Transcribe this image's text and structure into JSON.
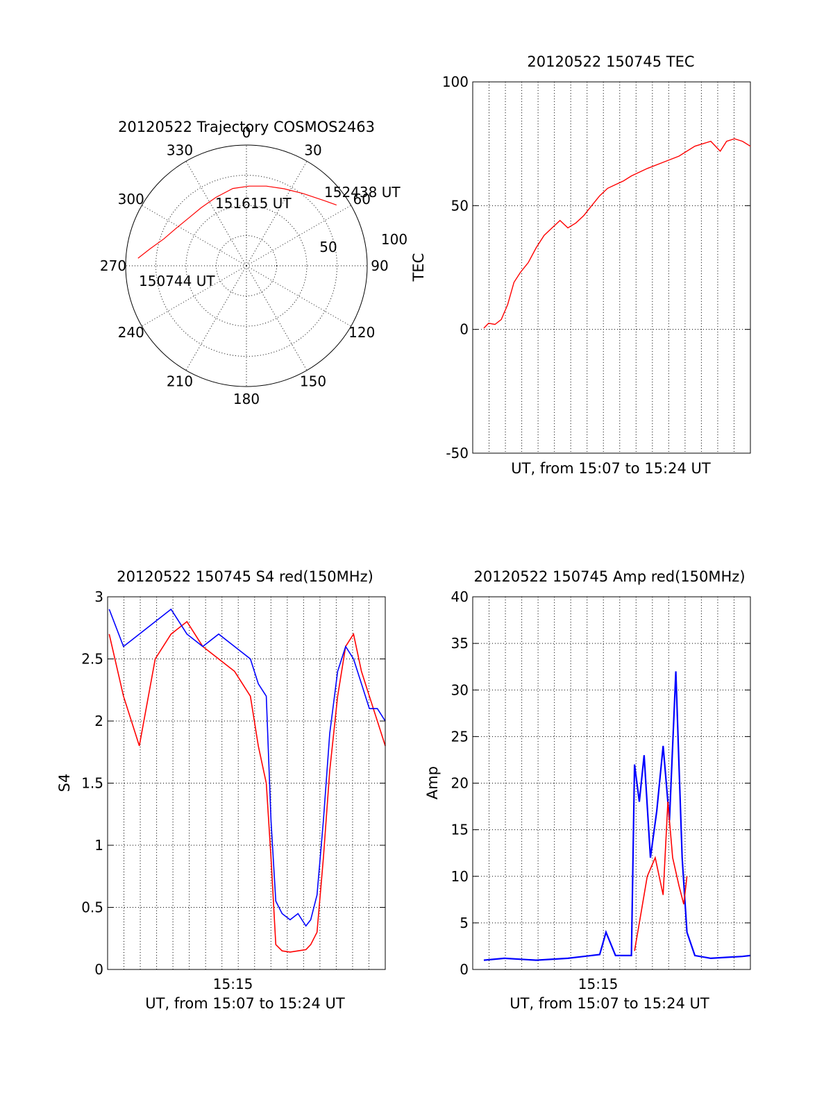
{
  "chart_data": [
    {
      "id": "trajectory",
      "type": "polar",
      "title": "20120522 Trajectory COSMOS2463",
      "azimuth_labels": [
        "0",
        "30",
        "60",
        "90",
        "120",
        "150",
        "180",
        "210",
        "240",
        "270",
        "300",
        "330"
      ],
      "radial_tick_labels": [
        "50",
        "100"
      ],
      "radius_max": 100,
      "colors": {
        "track": "#ff0000"
      },
      "track": {
        "azimuth_deg": [
          274,
          280,
          288,
          298,
          310,
          322,
          336,
          350,
          2,
          14,
          26,
          38,
          50,
          56
        ],
        "radius": [
          90,
          81,
          72,
          66,
          62,
          61,
          62,
          65,
          66,
          68,
          71,
          76,
          84,
          90
        ]
      },
      "annotations": [
        {
          "text": "150744 UT",
          "azimuth_deg": 274,
          "radius": 90
        },
        {
          "text": "151615 UT",
          "azimuth_deg": 0,
          "radius": 45
        },
        {
          "text": "152438 UT",
          "azimuth_deg": 56,
          "radius": 90
        }
      ]
    },
    {
      "id": "tec",
      "type": "line",
      "title": "20120522 150745 TEC",
      "xlabel": "UT, from 15:07 to 15:24 UT",
      "ylabel": "TEC",
      "xlim": [
        0,
        17.5
      ],
      "ylim": [
        -50,
        100
      ],
      "yticks": [
        "100",
        "50",
        "0",
        "-50"
      ],
      "ytick_values": [
        100,
        50,
        0,
        -50
      ],
      "grid": true,
      "colors": {
        "series": "#ff0000"
      },
      "series": [
        {
          "x": [
            0.7,
            1.0,
            1.4,
            1.8,
            2.2,
            2.6,
            3.0,
            3.5,
            4.0,
            4.5,
            5.0,
            5.5,
            6.0,
            6.5,
            7.0,
            7.5,
            8.0,
            8.5,
            9.0,
            9.5,
            10.0,
            11.0,
            12.0,
            13.0,
            14.0,
            15.0,
            15.6,
            16.0,
            16.5,
            17.0,
            17.5
          ],
          "y": [
            0.5,
            2.5,
            2.0,
            4.0,
            10.0,
            19.0,
            23.0,
            27.0,
            33.0,
            38.0,
            41.0,
            44.0,
            41.0,
            43.0,
            46.0,
            50.0,
            54.0,
            57.0,
            58.5,
            60.0,
            62.0,
            65.0,
            67.5,
            70.0,
            74.0,
            76.0,
            72.0,
            76.0,
            77.0,
            76.0,
            74.0
          ]
        }
      ]
    },
    {
      "id": "s4",
      "type": "line",
      "title": "20120522 150745 S4 red(150MHz)",
      "xlabel": "UT, from 15:07 to 15:24 UT",
      "ylabel": "S4",
      "xlim": [
        0,
        17.5
      ],
      "ylim": [
        0,
        3
      ],
      "yticks": [
        "3",
        "2.5",
        "2",
        "1.5",
        "1",
        "0.5",
        "0"
      ],
      "ytick_values": [
        3,
        2.5,
        2,
        1.5,
        1,
        0.5,
        0
      ],
      "xticks": [
        "15:15"
      ],
      "xtick_values": [
        7.9
      ],
      "grid": true,
      "colors": {
        "red": "#ff0000",
        "blue": "#0000ff"
      },
      "series": [
        {
          "color": "red",
          "x": [
            0.1,
            1.0,
            2.0,
            3.0,
            4.0,
            5.0,
            6.0,
            7.0,
            8.0,
            9.0,
            9.5,
            10.0,
            10.3,
            10.6,
            11.0,
            11.5,
            12.0,
            12.5,
            12.8,
            13.2,
            13.6,
            14.0,
            14.5,
            15.0,
            15.5,
            16.0,
            16.5,
            17.0,
            17.5
          ],
          "y": [
            2.7,
            2.2,
            1.8,
            2.5,
            2.7,
            2.8,
            2.6,
            2.5,
            2.4,
            2.2,
            1.8,
            1.5,
            0.9,
            0.2,
            0.15,
            0.14,
            0.15,
            0.16,
            0.2,
            0.3,
            0.9,
            1.6,
            2.2,
            2.6,
            2.7,
            2.4,
            2.2,
            2.0,
            1.8
          ]
        },
        {
          "color": "blue",
          "x": [
            0.1,
            1.0,
            2.0,
            3.0,
            4.0,
            5.0,
            6.0,
            7.0,
            8.0,
            9.0,
            9.5,
            10.0,
            10.3,
            10.6,
            11.0,
            11.5,
            12.0,
            12.5,
            12.8,
            13.2,
            13.6,
            14.0,
            14.5,
            15.0,
            15.5,
            16.0,
            16.5,
            17.0,
            17.5
          ],
          "y": [
            2.9,
            2.6,
            2.7,
            2.8,
            2.9,
            2.7,
            2.6,
            2.7,
            2.6,
            2.5,
            2.3,
            2.2,
            1.2,
            0.55,
            0.45,
            0.4,
            0.45,
            0.35,
            0.4,
            0.6,
            1.2,
            1.9,
            2.4,
            2.6,
            2.5,
            2.3,
            2.1,
            2.1,
            2.0
          ]
        }
      ]
    },
    {
      "id": "amp",
      "type": "line",
      "title": "20120522 150745 Amp red(150MHz)",
      "xlabel": "UT, from 15:07 to 15:24 UT",
      "ylabel": "Amp",
      "xlim": [
        0,
        17.5
      ],
      "ylim": [
        0,
        40
      ],
      "yticks": [
        "40",
        "35",
        "30",
        "25",
        "20",
        "15",
        "10",
        "5",
        "0"
      ],
      "ytick_values": [
        40,
        35,
        30,
        25,
        20,
        15,
        10,
        5,
        0
      ],
      "xticks": [
        "15:15"
      ],
      "xtick_values": [
        7.9
      ],
      "grid": true,
      "colors": {
        "red": "#ff0000",
        "blue": "#0000ff"
      },
      "series": [
        {
          "color": "red",
          "x": [
            10.2,
            10.6,
            11.0,
            11.5,
            12.0,
            12.3,
            12.6,
            13.0,
            13.3,
            13.5
          ],
          "y": [
            2.0,
            6.0,
            10.0,
            12.0,
            8.0,
            18.0,
            12.0,
            9.0,
            7.0,
            10.0
          ]
        },
        {
          "color": "blue",
          "x": [
            0.7,
            2.0,
            4.0,
            6.0,
            7.0,
            8.0,
            8.4,
            9.0,
            10.0,
            10.2,
            10.5,
            10.8,
            11.2,
            11.6,
            12.0,
            12.4,
            12.8,
            13.0,
            13.2,
            13.5,
            14.0,
            15.0,
            16.0,
            17.0,
            17.5
          ],
          "y": [
            1.0,
            1.2,
            1.0,
            1.2,
            1.4,
            1.6,
            4.0,
            1.5,
            1.5,
            22.0,
            18.0,
            23.0,
            12.0,
            17.0,
            24.0,
            16.0,
            32.0,
            22.0,
            12.0,
            4.0,
            1.5,
            1.2,
            1.3,
            1.4,
            1.5
          ]
        }
      ]
    }
  ]
}
